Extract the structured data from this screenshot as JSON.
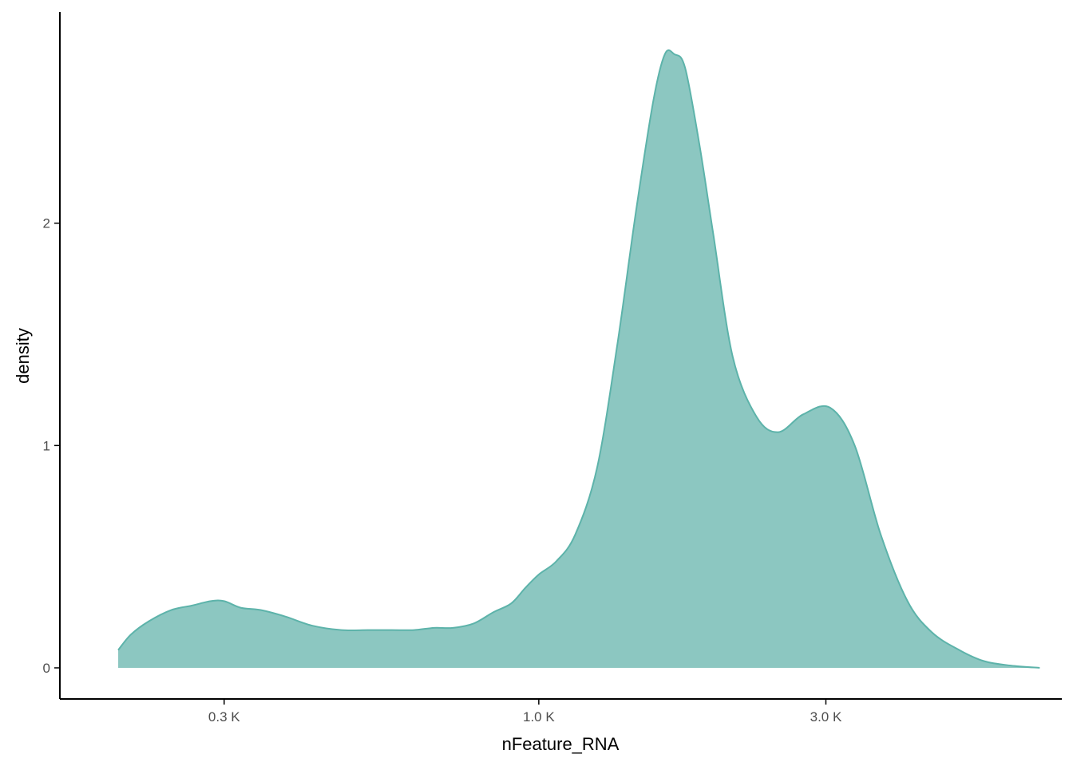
{
  "chart_data": {
    "type": "area",
    "xlabel": "nFeature_RNA",
    "ylabel": "density",
    "x_scale": "log10",
    "xlim": [
      160,
      7400
    ],
    "ylim": [
      -0.14,
      2.95
    ],
    "x_ticks": [
      {
        "value": 300,
        "label": "0.3 K"
      },
      {
        "value": 1000,
        "label": "1.0 K"
      },
      {
        "value": 3000,
        "label": "3.0 K"
      }
    ],
    "y_ticks": [
      {
        "value": 0,
        "label": "0"
      },
      {
        "value": 1,
        "label": "1"
      },
      {
        "value": 2,
        "label": "2"
      }
    ],
    "grid": false,
    "legend": "none",
    "fill_color": "#8cc7c1",
    "line_color": "#5db3aa",
    "series": [
      {
        "x": [
          200,
          210,
          225,
          245,
          265,
          285,
          300,
          320,
          345,
          380,
          420,
          470,
          520,
          570,
          620,
          670,
          720,
          780,
          840,
          900,
          950,
          1000,
          1070,
          1150,
          1250,
          1350,
          1450,
          1550,
          1620,
          1680,
          1750,
          1850,
          1950,
          2100,
          2300,
          2500,
          2750,
          3050,
          3350,
          3700,
          4100,
          4500,
          5000,
          5500,
          6100,
          6800
        ],
        "y": [
          0.08,
          0.15,
          0.21,
          0.26,
          0.28,
          0.3,
          0.3,
          0.27,
          0.26,
          0.23,
          0.19,
          0.17,
          0.17,
          0.17,
          0.17,
          0.18,
          0.18,
          0.2,
          0.25,
          0.29,
          0.36,
          0.42,
          0.48,
          0.6,
          0.9,
          1.45,
          2.05,
          2.55,
          2.76,
          2.76,
          2.7,
          2.35,
          1.95,
          1.4,
          1.13,
          1.06,
          1.14,
          1.17,
          1.0,
          0.6,
          0.3,
          0.16,
          0.08,
          0.03,
          0.01,
          0.0
        ]
      }
    ]
  }
}
